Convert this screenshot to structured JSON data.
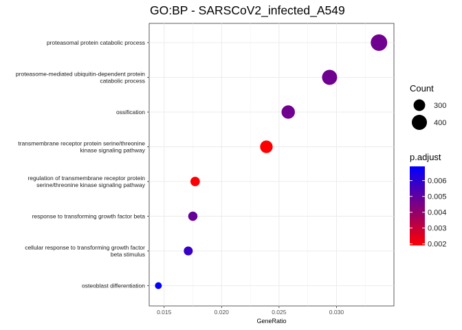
{
  "chart_data": {
    "type": "scatter",
    "title": "GO:BP - SARSCoV2_infected_A549",
    "xlabel": "GeneRatio",
    "ylabel": "",
    "xlim": [
      0.0137,
      0.035
    ],
    "xticks": [
      "0.015",
      "0.020",
      "0.025",
      "0.030"
    ],
    "xtick_values": [
      0.015,
      0.02,
      0.025,
      0.03
    ],
    "grid": true,
    "legend_position": "right",
    "categories": [
      [
        "proteasomal protein catabolic process"
      ],
      [
        "proteasome-mediated ubiquitin-dependent protein",
        "catabolic process"
      ],
      [
        "ossification"
      ],
      [
        "transmembrane receptor protein serine/threonine",
        "kinase signaling pathway"
      ],
      [
        "regulation of transmembrane receptor protein",
        "serine/threonine kinase signaling pathway"
      ],
      [
        "response to transforming growth factor beta"
      ],
      [
        "cellular response to transforming growth factor",
        "beta stimulus"
      ],
      [
        "osteoblast differentiation"
      ]
    ],
    "points": [
      {
        "x": 0.0337,
        "count": 446,
        "p_adjust": 0.0047
      },
      {
        "x": 0.0294,
        "count": 398,
        "p_adjust": 0.0047
      },
      {
        "x": 0.0258,
        "count": 347,
        "p_adjust": 0.0047
      },
      {
        "x": 0.0239,
        "count": 325,
        "p_adjust": 0.0019
      },
      {
        "x": 0.0177,
        "count": 251,
        "p_adjust": 0.002
      },
      {
        "x": 0.0175,
        "count": 248,
        "p_adjust": 0.0049
      },
      {
        "x": 0.0171,
        "count": 242,
        "p_adjust": 0.0058
      },
      {
        "x": 0.0145,
        "count": 207,
        "p_adjust": 0.0068
      }
    ],
    "size_legend": {
      "title": "Count",
      "entries": [
        {
          "label": "300",
          "value": 300
        },
        {
          "label": "400",
          "value": 400
        }
      ]
    },
    "color_legend": {
      "title": "p.adjust",
      "range": [
        0.0019,
        0.0069
      ],
      "low_color": "#ff0000",
      "high_color": "#0000ff",
      "ticks": [
        {
          "label": "0.006",
          "value": 0.006
        },
        {
          "label": "0.005",
          "value": 0.005
        },
        {
          "label": "0.004",
          "value": 0.004
        },
        {
          "label": "0.003",
          "value": 0.003
        },
        {
          "label": "0.002",
          "value": 0.002
        }
      ]
    }
  }
}
